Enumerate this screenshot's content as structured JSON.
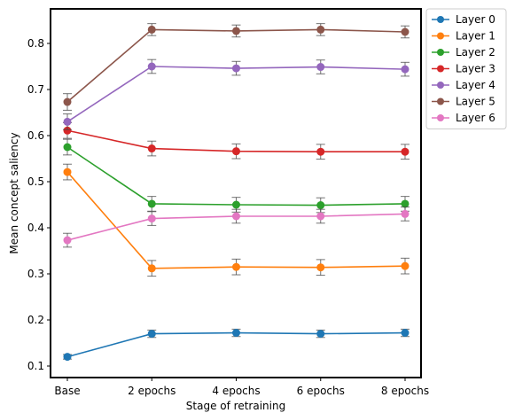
{
  "chart_data": {
    "type": "line",
    "xlabel": "Stage of retraining",
    "ylabel": "Mean concept saliency",
    "categories": [
      "Base",
      "2 epochs",
      "4 epochs",
      "6 epochs",
      "8 epochs"
    ],
    "ylim": [
      0.075,
      0.875
    ],
    "yticks": [
      0.1,
      0.2,
      0.3,
      0.4,
      0.5,
      0.6,
      0.7,
      0.8
    ],
    "grid": false,
    "legend_position": "outside-top-right",
    "error_bars": true,
    "series": [
      {
        "name": "Layer 0",
        "color": "#1f77b4",
        "values": [
          0.12,
          0.17,
          0.172,
          0.17,
          0.172
        ],
        "errors": [
          0.005,
          0.008,
          0.008,
          0.008,
          0.008
        ]
      },
      {
        "name": "Layer 1",
        "color": "#ff7f0e",
        "values": [
          0.521,
          0.312,
          0.315,
          0.314,
          0.317
        ],
        "errors": [
          0.017,
          0.017,
          0.017,
          0.017,
          0.017
        ]
      },
      {
        "name": "Layer 2",
        "color": "#2ca02c",
        "values": [
          0.575,
          0.452,
          0.45,
          0.449,
          0.452
        ],
        "errors": [
          0.017,
          0.016,
          0.016,
          0.016,
          0.016
        ]
      },
      {
        "name": "Layer 3",
        "color": "#d62728",
        "values": [
          0.611,
          0.572,
          0.566,
          0.565,
          0.565
        ],
        "errors": [
          0.017,
          0.016,
          0.016,
          0.016,
          0.016
        ]
      },
      {
        "name": "Layer 4",
        "color": "#9467bd",
        "values": [
          0.63,
          0.75,
          0.746,
          0.749,
          0.744
        ],
        "errors": [
          0.017,
          0.015,
          0.015,
          0.015,
          0.015
        ]
      },
      {
        "name": "Layer 5",
        "color": "#8c564b",
        "values": [
          0.673,
          0.83,
          0.827,
          0.83,
          0.825
        ],
        "errors": [
          0.018,
          0.013,
          0.013,
          0.013,
          0.013
        ]
      },
      {
        "name": "Layer 6",
        "color": "#e377c2",
        "values": [
          0.373,
          0.42,
          0.425,
          0.425,
          0.43
        ],
        "errors": [
          0.015,
          0.015,
          0.015,
          0.015,
          0.015
        ]
      }
    ]
  }
}
